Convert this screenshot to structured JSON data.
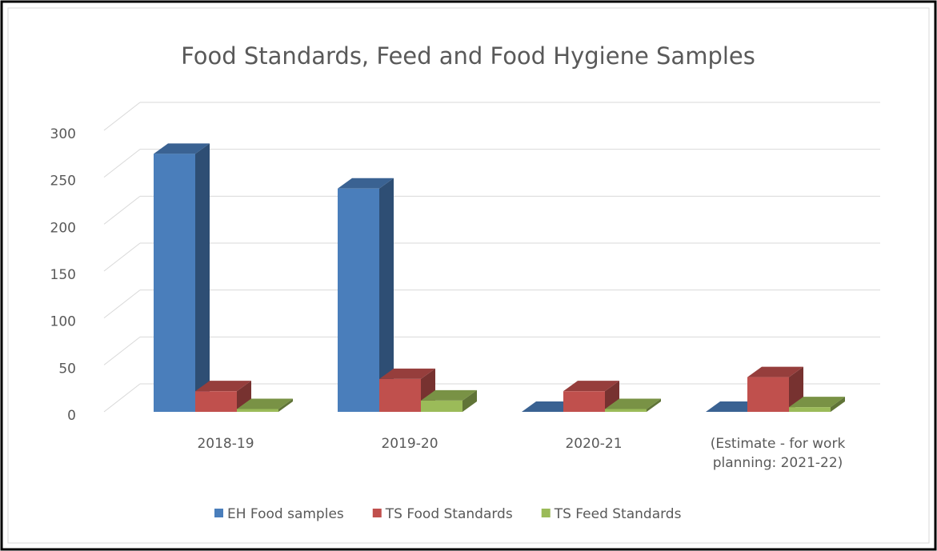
{
  "chart_data": {
    "type": "bar3d",
    "title": "Food Standards, Feed and Food Hygiene Samples",
    "categories": [
      "2018-19",
      "2019-20",
      "2020-21",
      "(Estimate - for work planning: 2021-22)"
    ],
    "series": [
      {
        "name": "EH Food samples",
        "color": "#4a7ebb",
        "values": [
          275,
          238,
          0,
          0
        ]
      },
      {
        "name": "TS Food Standards",
        "color": "#c0504d",
        "values": [
          22,
          35,
          22,
          37
        ]
      },
      {
        "name": "TS Feed Standards",
        "color": "#9bbb59",
        "values": [
          3,
          12,
          3,
          5
        ]
      }
    ],
    "ylim": [
      0,
      300
    ],
    "yticks": [
      0,
      50,
      100,
      150,
      200,
      250,
      300
    ],
    "grid": true,
    "legend": "bottom"
  }
}
